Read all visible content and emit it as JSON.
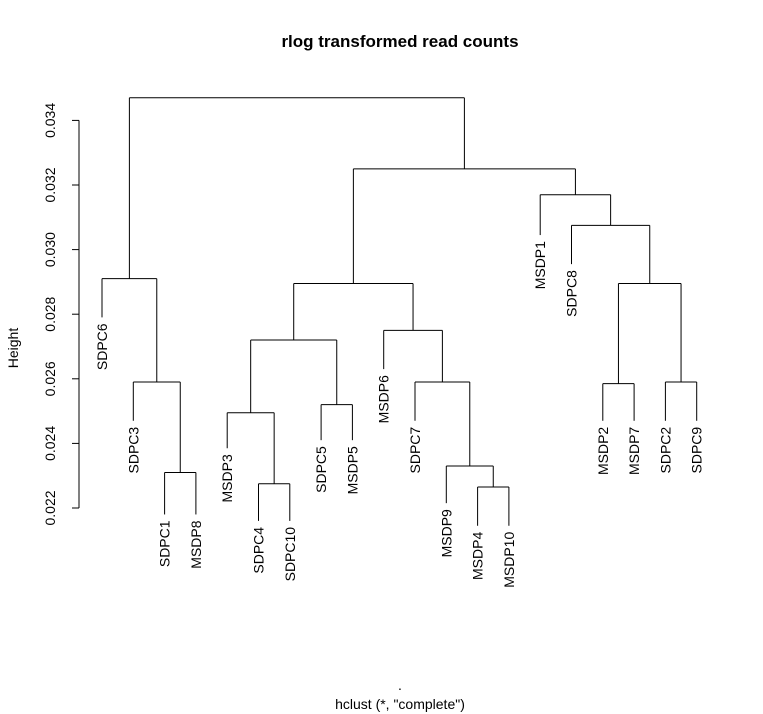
{
  "chart_data": {
    "type": "dendrogram",
    "title": "rlog transformed read counts",
    "ylabel": "Height",
    "xlabel": "hclust (*, \"complete\")",
    "subtitle": ".",
    "ylim": [
      0.022,
      0.0347
    ],
    "yticks": [
      {
        "value": 0.022,
        "label": "0.022"
      },
      {
        "value": 0.024,
        "label": "0.024"
      },
      {
        "value": 0.026,
        "label": "0.026"
      },
      {
        "value": 0.028,
        "label": "0.028"
      },
      {
        "value": 0.03,
        "label": "0.030"
      },
      {
        "value": 0.032,
        "label": "0.032"
      },
      {
        "value": 0.034,
        "label": "0.034"
      }
    ],
    "leaf_order": [
      "SDPC6",
      "SDPC3",
      "SDPC1",
      "MSDP8",
      "MSDP3",
      "SDPC4",
      "SDPC10",
      "SDPC5",
      "MSDP5",
      "MSDP6",
      "SDPC7",
      "MSDP9",
      "MSDP4",
      "MSDP10",
      "MSDP1",
      "SDPC8",
      "MSDP2",
      "MSDP7",
      "SDPC2",
      "SDPC9"
    ],
    "merges": [
      {
        "id": "a1",
        "left": "SDPC1",
        "right": "MSDP8",
        "height": 0.0231
      },
      {
        "id": "a2",
        "left": "SDPC3",
        "right": "a1",
        "height": 0.0259
      },
      {
        "id": "a3",
        "left": "SDPC6",
        "right": "a2",
        "height": 0.0291
      },
      {
        "id": "b1",
        "left": "SDPC4",
        "right": "SDPC10",
        "height": 0.02275
      },
      {
        "id": "b2",
        "left": "MSDP3",
        "right": "b1",
        "height": 0.02495
      },
      {
        "id": "b3",
        "left": "SDPC5",
        "right": "MSDP5",
        "height": 0.0252
      },
      {
        "id": "b4",
        "left": "b2",
        "right": "b3",
        "height": 0.0272
      },
      {
        "id": "c1",
        "left": "MSDP4",
        "right": "MSDP10",
        "height": 0.02265
      },
      {
        "id": "c2",
        "left": "MSDP9",
        "right": "c1",
        "height": 0.0233
      },
      {
        "id": "c3",
        "left": "SDPC7",
        "right": "c2",
        "height": 0.0259
      },
      {
        "id": "c4",
        "left": "MSDP6",
        "right": "c3",
        "height": 0.0275
      },
      {
        "id": "bc",
        "left": "b4",
        "right": "c4",
        "height": 0.02895
      },
      {
        "id": "d1",
        "left": "MSDP2",
        "right": "MSDP7",
        "height": 0.02585
      },
      {
        "id": "d2",
        "left": "SDPC2",
        "right": "SDPC9",
        "height": 0.0259
      },
      {
        "id": "d3",
        "left": "d1",
        "right": "d2",
        "height": 0.02895
      },
      {
        "id": "d4",
        "left": "SDPC8",
        "right": "d3",
        "height": 0.03075
      },
      {
        "id": "d5",
        "left": "MSDP1",
        "right": "d4",
        "height": 0.0317
      },
      {
        "id": "e1",
        "left": "bc",
        "right": "d5",
        "height": 0.0325
      },
      {
        "id": "root",
        "left": "a3",
        "right": "e1",
        "height": 0.0347
      }
    ],
    "leaf_heights": {
      "SDPC6": 0.0279,
      "SDPC3": 0.0247,
      "SDPC1": 0.0218,
      "MSDP8": 0.0218,
      "MSDP3": 0.02385,
      "SDPC4": 0.0216,
      "SDPC10": 0.0216,
      "SDPC5": 0.0241,
      "MSDP5": 0.0241,
      "MSDP6": 0.0263,
      "SDPC7": 0.0247,
      "MSDP9": 0.02215,
      "MSDP4": 0.02145,
      "MSDP10": 0.02145,
      "MSDP1": 0.03045,
      "SDPC8": 0.02955,
      "MSDP2": 0.0247,
      "MSDP7": 0.0247,
      "SDPC2": 0.0247,
      "SDPC9": 0.0247
    }
  }
}
